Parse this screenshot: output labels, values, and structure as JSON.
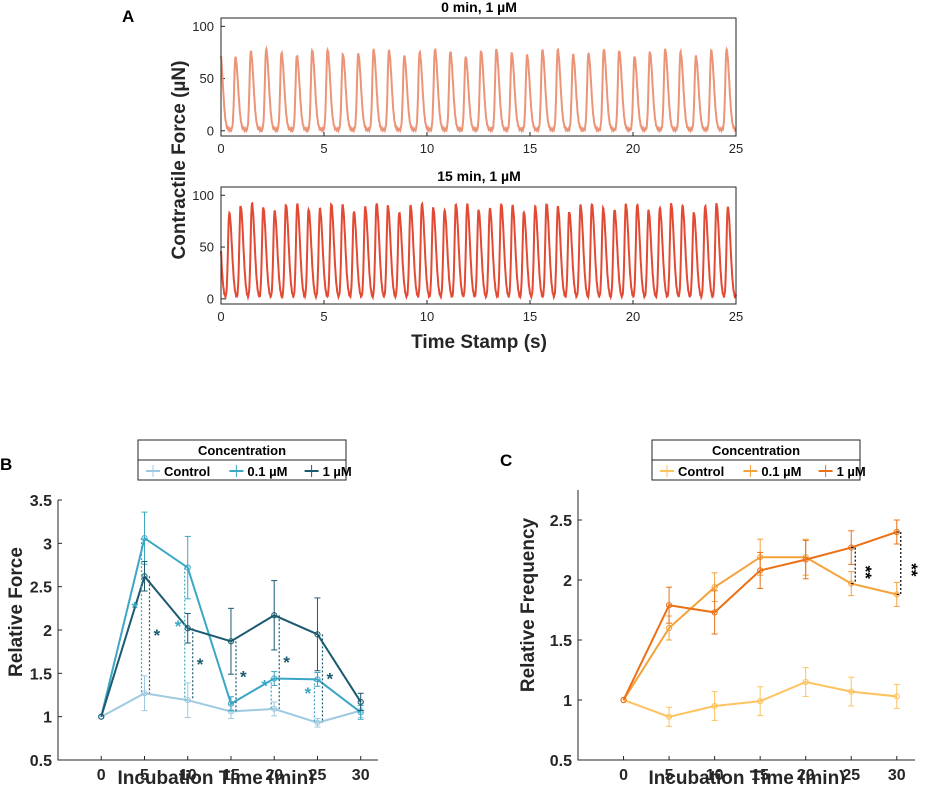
{
  "panel_labels": {
    "a": "A",
    "b": "B",
    "c": "C"
  },
  "chart_data": [
    {
      "id": "A1",
      "type": "line",
      "title": "0 min, 1 µM",
      "xlim": [
        0,
        25
      ],
      "ylim": [
        -5,
        108
      ],
      "xticks": [
        "0",
        "5",
        "10",
        "15",
        "20",
        "25"
      ],
      "yticks": [
        "0",
        "50",
        "100"
      ],
      "ylabel": "Contractile Force (µN)",
      "color": "#ec9477",
      "trace": {
        "first_peak_s": 0.7,
        "period_s": 0.745,
        "peak_uN": 78,
        "baseline_uN": 1
      }
    },
    {
      "id": "A2",
      "type": "line",
      "title": "15 min, 1 µM",
      "xlim": [
        0,
        25
      ],
      "ylim": [
        -5,
        108
      ],
      "xticks": [
        "0",
        "5",
        "10",
        "15",
        "20",
        "25"
      ],
      "yticks": [
        "0",
        "50",
        "100"
      ],
      "xlabel": "Time Stamp (s)",
      "color": "#e34a33",
      "trace": {
        "first_peak_s": 0.4,
        "period_s": 0.55,
        "peak_uN": 92,
        "baseline_uN": 0
      }
    },
    {
      "id": "B",
      "type": "line",
      "title": "",
      "xlabel": "Incubation Time (min)",
      "ylabel": "Relative Force",
      "xlim": [
        -5,
        32
      ],
      "ylim": [
        0.5,
        3.5
      ],
      "xticks": [
        "0",
        "5",
        "10",
        "15",
        "20",
        "25",
        "30"
      ],
      "yticks": [
        "0.5",
        "1",
        "1.5",
        "2",
        "2.5",
        "3",
        "3.5"
      ],
      "x": [
        0,
        5,
        10,
        15,
        20,
        25,
        30
      ],
      "legend": {
        "title": "Concentration",
        "entries": [
          "Control",
          "0.1 µM",
          "1 µM"
        ]
      },
      "series": [
        {
          "name": "Control",
          "color": "#9ecae1",
          "values": [
            1,
            1.27,
            1.19,
            1.06,
            1.09,
            0.93,
            1.07
          ],
          "err": [
            0,
            0.2,
            0.2,
            0.08,
            0.08,
            0.05,
            0.08
          ]
        },
        {
          "name": "0.1 µM",
          "color": "#3aa7c5",
          "values": [
            1,
            3.06,
            2.72,
            1.15,
            1.44,
            1.43,
            1.05
          ],
          "err": [
            0,
            0.3,
            0.36,
            0.08,
            0.08,
            0.08,
            0.08
          ]
        },
        {
          "name": "1 µM",
          "color": "#1b5a70",
          "values": [
            1,
            2.62,
            2.02,
            1.87,
            2.17,
            1.95,
            1.17
          ],
          "err": [
            0,
            0.17,
            0.17,
            0.38,
            0.4,
            0.42,
            0.1
          ]
        }
      ],
      "annotations": [
        {
          "x": 5,
          "text": "*",
          "series": "0.1 µM"
        },
        {
          "x": 5,
          "text": "*",
          "series": "1 µM"
        },
        {
          "x": 10,
          "text": "*",
          "series": "0.1 µM"
        },
        {
          "x": 10,
          "text": "*",
          "series": "1 µM"
        },
        {
          "x": 15,
          "text": "*",
          "series": "1 µM"
        },
        {
          "x": 20,
          "text": "*",
          "series": "0.1 µM"
        },
        {
          "x": 20,
          "text": "*",
          "series": "1 µM"
        },
        {
          "x": 25,
          "text": "*",
          "series": "0.1 µM"
        },
        {
          "x": 25,
          "text": "*",
          "series": "1 µM"
        }
      ]
    },
    {
      "id": "C",
      "type": "line",
      "title": "",
      "xlabel": "Incubation Time (min)",
      "ylabel": "Relative Frequency",
      "xlim": [
        -5,
        32
      ],
      "ylim": [
        0.5,
        2.75
      ],
      "xticks": [
        "0",
        "5",
        "10",
        "15",
        "20",
        "25",
        "30"
      ],
      "yticks": [
        "0.5",
        "1",
        "1.5",
        "2",
        "2.5"
      ],
      "x": [
        0,
        5,
        10,
        15,
        20,
        25,
        30
      ],
      "legend": {
        "title": "Concentration",
        "entries": [
          "Control",
          "0.1 µM",
          "1 µM"
        ]
      },
      "series": [
        {
          "name": "Control",
          "color": "#fdc35f",
          "values": [
            1,
            0.86,
            0.95,
            0.99,
            1.15,
            1.07,
            1.03
          ],
          "err": [
            0,
            0.08,
            0.12,
            0.12,
            0.12,
            0.12,
            0.1
          ]
        },
        {
          "name": "0.1 µM",
          "color": "#f4a23a",
          "values": [
            1,
            1.6,
            1.94,
            2.19,
            2.19,
            1.97,
            1.88
          ],
          "err": [
            0,
            0.1,
            0.12,
            0.15,
            0.15,
            0.1,
            0.1
          ]
        },
        {
          "name": "1 µM",
          "color": "#ec7014",
          "values": [
            1,
            1.79,
            1.73,
            2.08,
            2.17,
            2.27,
            2.4
          ],
          "err": [
            0,
            0.15,
            0.18,
            0.15,
            0.16,
            0.14,
            0.1
          ]
        }
      ],
      "annotations": [
        {
          "x": 25,
          "text": "**"
        },
        {
          "x": 30,
          "text": "**"
        }
      ]
    }
  ]
}
